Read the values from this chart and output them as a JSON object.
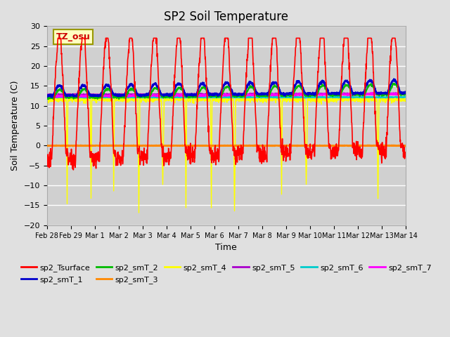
{
  "title": "SP2 Soil Temperature",
  "ylabel": "Soil Temperature (C)",
  "xlabel": "Time",
  "ylim": [
    -20,
    30
  ],
  "yticks": [
    -20,
    -15,
    -10,
    -5,
    0,
    5,
    10,
    15,
    20,
    25,
    30
  ],
  "xtick_labels": [
    "Feb 28",
    "Feb 29",
    "Mar 1",
    "Mar 2",
    "Mar 3",
    "Mar 4",
    "Mar 5",
    "Mar 6",
    "Mar 7",
    "Mar 8",
    "Mar 9",
    "Mar 10",
    "Mar 11",
    "Mar 12",
    "Mar 13",
    "Mar 14"
  ],
  "fig_bg": "#e0e0e0",
  "ax_bg": "#d0d0d0",
  "tz_label": "TZ_osu",
  "series_colors": {
    "sp2_Tsurface": "#ff0000",
    "sp2_smT_1": "#0000cc",
    "sp2_smT_2": "#00bb00",
    "sp2_smT_3": "#ff8800",
    "sp2_smT_4": "#ffff00",
    "sp2_smT_5": "#aa00cc",
    "sp2_smT_6": "#00cccc",
    "sp2_smT_7": "#ff00ff"
  },
  "n_days": 15,
  "pts_per_day": 96,
  "seed": 77
}
